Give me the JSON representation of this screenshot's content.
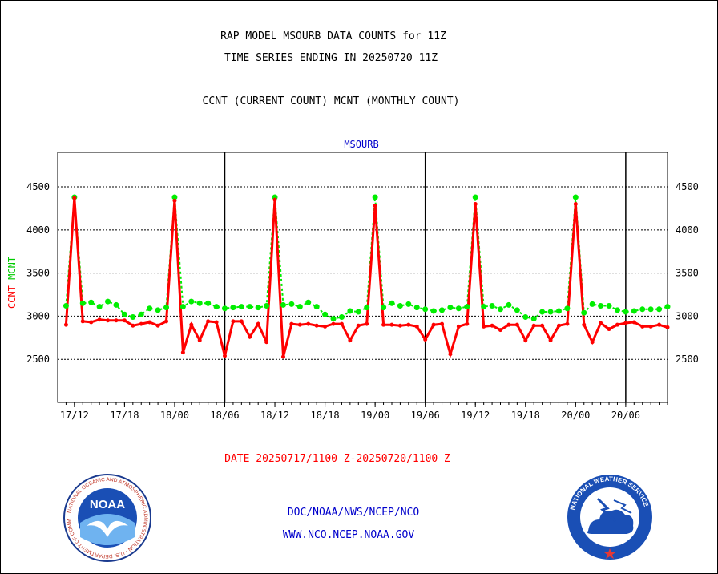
{
  "header": {
    "title_line1": "RAP MODEL MSOURB DATA COUNTS for 11Z",
    "title_line2": "TIME SERIES ENDING IN 20250720 11Z",
    "subtitle": "CCNT (CURRENT COUNT) MCNT (MONTHLY COUNT)",
    "panel_label": "MSOURB"
  },
  "y_axis_label": {
    "ccnt": "CCNT",
    "mcnt": "MCNT"
  },
  "footer": {
    "date_range": "DATE 20250717/1100 Z-20250720/1100 Z",
    "link1": "DOC/NOAA/NWS/NCEP/NCO",
    "link2": "WWW.NCO.NCEP.NOAA.GOV"
  },
  "logos": {
    "noaa": {
      "center_text": "NOAA",
      "ring_text": "NATIONAL OCEANIC AND ATMOSPHERIC ADMINISTRATION · U.S. DEPARTMENT OF COMMERCE"
    },
    "nws": {
      "ring_text": "NATIONAL WEATHER SERVICE"
    }
  },
  "colors": {
    "ccnt": "#ff0000",
    "mcnt": "#00ee00",
    "title": "#000000",
    "panel": "#0000cc",
    "date": "#ff0000",
    "links": "#0000cc"
  },
  "chart_data": {
    "type": "line",
    "x_start_hour": 0,
    "x_end_hour": 72,
    "xlim": [
      -1,
      72
    ],
    "ylim": [
      2000,
      4900
    ],
    "yticks": [
      2500,
      3000,
      3500,
      4000,
      4500
    ],
    "ytick_labels": [
      "2500",
      "3000",
      "3500",
      "4000",
      "4500"
    ],
    "xticks": [
      {
        "hour": 1,
        "label": "17/12"
      },
      {
        "hour": 7,
        "label": "17/18"
      },
      {
        "hour": 13,
        "label": "18/00"
      },
      {
        "hour": 19,
        "label": "18/06"
      },
      {
        "hour": 25,
        "label": "18/12"
      },
      {
        "hour": 31,
        "label": "18/18"
      },
      {
        "hour": 37,
        "label": "19/00"
      },
      {
        "hour": 43,
        "label": "19/06"
      },
      {
        "hour": 49,
        "label": "19/12"
      },
      {
        "hour": 55,
        "label": "19/18"
      },
      {
        "hour": 61,
        "label": "20/00"
      },
      {
        "hour": 67,
        "label": "20/06"
      }
    ],
    "day_boundaries": [
      19,
      43,
      67
    ],
    "grid": true,
    "series": [
      {
        "name": "CCNT",
        "color": "#ff0000",
        "values": [
          2900,
          4370,
          2940,
          2930,
          2960,
          2950,
          2950,
          2950,
          2890,
          2910,
          2930,
          2890,
          2940,
          4340,
          2580,
          2900,
          2720,
          2940,
          2930,
          2540,
          2940,
          2940,
          2760,
          2910,
          2700,
          4350,
          2530,
          2910,
          2900,
          2910,
          2890,
          2880,
          2910,
          2910,
          2720,
          2890,
          2910,
          4280,
          2900,
          2900,
          2890,
          2900,
          2880,
          2730,
          2900,
          2910,
          2560,
          2880,
          2910,
          4300,
          2880,
          2890,
          2840,
          2900,
          2900,
          2720,
          2890,
          2890,
          2720,
          2890,
          2910,
          4300,
          2900,
          2700,
          2920,
          2850,
          2900,
          2920,
          2930,
          2880,
          2880,
          2900,
          2870
        ]
      },
      {
        "name": "MCNT",
        "color": "#00ee00",
        "values": [
          3120,
          4380,
          3150,
          3160,
          3110,
          3170,
          3130,
          3020,
          2990,
          3020,
          3090,
          3070,
          3100,
          4380,
          3110,
          3170,
          3150,
          3150,
          3110,
          3090,
          3100,
          3110,
          3110,
          3100,
          3120,
          4380,
          3130,
          3140,
          3110,
          3160,
          3110,
          3020,
          2970,
          2990,
          3060,
          3050,
          3100,
          4380,
          3100,
          3150,
          3120,
          3140,
          3100,
          3080,
          3060,
          3070,
          3100,
          3090,
          3110,
          4380,
          3110,
          3120,
          3080,
          3130,
          3070,
          2990,
          2970,
          3050,
          3050,
          3060,
          3090,
          4380,
          3040,
          3140,
          3120,
          3120,
          3070,
          3050,
          3060,
          3080,
          3080,
          3080,
          3110
        ]
      }
    ]
  }
}
